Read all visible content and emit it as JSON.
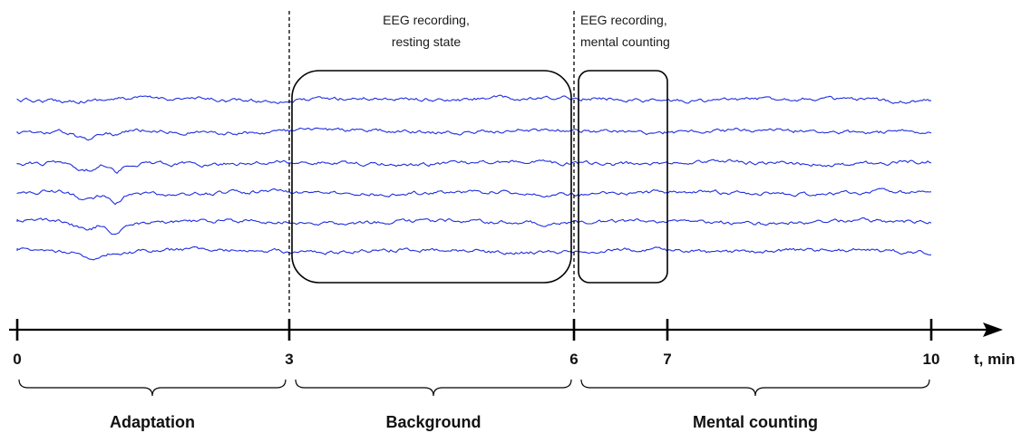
{
  "annotations": {
    "resting_line1": "EEG recording,",
    "resting_line2": "resting state",
    "counting_line1": "EEG recording,",
    "counting_line2": "mental counting"
  },
  "axis": {
    "unit_label": "t, min",
    "ticks": [
      "0",
      "3",
      "6",
      "7",
      "10"
    ]
  },
  "phases": {
    "adaptation": "Adaptation",
    "background": "Background",
    "mental_counting": "Mental counting"
  },
  "eeg": {
    "channel_count": 6,
    "trace_color": "#1f2fe0"
  }
}
